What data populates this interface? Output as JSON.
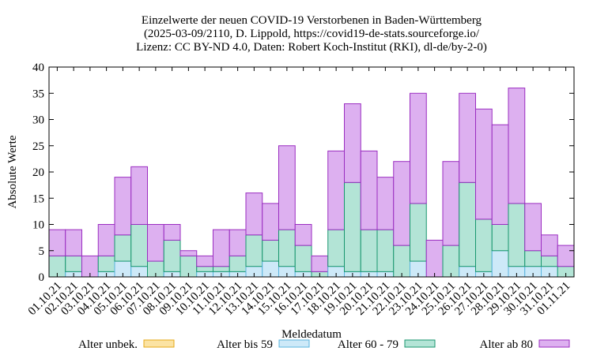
{
  "chart_data": {
    "type": "bar",
    "stacked": true,
    "title_lines": [
      "Einzelwerte der neuen COVID-19 Verstorbenen in Baden-Württemberg",
      "(2025-03-09/2110, D. Lippold, https://covid19-de-stats.sourceforge.io/",
      "Lizenz: CC BY-ND 4.0, Daten: Robert Koch-Institut (RKI), dl-de/by-2-0)"
    ],
    "xlabel": "Meldedatum",
    "ylabel": "Absolute Werte",
    "ylim": [
      0,
      40
    ],
    "yticks": [
      0,
      5,
      10,
      15,
      20,
      25,
      30,
      35,
      40
    ],
    "grid": false,
    "legend_position": "bottom",
    "categories": [
      "01.10.21",
      "02.10.21",
      "03.10.21",
      "04.10.21",
      "05.10.21",
      "06.10.21",
      "07.10.21",
      "08.10.21",
      "09.10.21",
      "10.10.21",
      "11.10.21",
      "12.10.21",
      "13.10.21",
      "14.10.21",
      "15.10.21",
      "16.10.21",
      "17.10.21",
      "18.10.21",
      "19.10.21",
      "20.10.21",
      "21.10.21",
      "22.10.21",
      "23.10.21",
      "24.10.21",
      "25.10.21",
      "26.10.21",
      "27.10.21",
      "28.10.21",
      "29.10.21",
      "30.10.21",
      "31.10.21",
      "01.11.21"
    ],
    "series": [
      {
        "name": "Alter unbek.",
        "color": "#fbe3a3",
        "stroke": "#e6a817",
        "values": [
          0,
          0,
          0,
          0,
          0,
          0,
          0,
          0,
          0,
          0,
          0,
          0,
          0,
          0,
          0,
          0,
          0,
          0,
          0,
          0,
          0,
          0,
          0,
          0,
          0,
          0,
          0,
          0,
          0,
          0,
          0,
          0
        ]
      },
      {
        "name": "Alter bis 59",
        "color": "#cde9f8",
        "stroke": "#5ab4de",
        "values": [
          0,
          1,
          0,
          1,
          3,
          2,
          0,
          1,
          0,
          1,
          1,
          1,
          2,
          3,
          2,
          1,
          0,
          2,
          1,
          1,
          1,
          0,
          3,
          0,
          0,
          2,
          1,
          5,
          2,
          2,
          2,
          0
        ]
      },
      {
        "name": "Alter 60 - 79",
        "color": "#b3e4d6",
        "stroke": "#18966e",
        "values": [
          4,
          3,
          0,
          3,
          5,
          8,
          3,
          6,
          4,
          1,
          1,
          3,
          6,
          4,
          7,
          5,
          1,
          7,
          17,
          8,
          8,
          6,
          11,
          0,
          6,
          16,
          10,
          5,
          12,
          3,
          2,
          2
        ]
      },
      {
        "name": "Alter ab 80",
        "color": "#ddb0f0",
        "stroke": "#9a2dc0",
        "values": [
          5,
          5,
          4,
          6,
          11,
          11,
          7,
          3,
          1,
          2,
          7,
          5,
          8,
          7,
          16,
          4,
          3,
          15,
          15,
          15,
          10,
          16,
          21,
          7,
          16,
          17,
          21,
          19,
          22,
          9,
          4,
          4
        ]
      }
    ]
  }
}
